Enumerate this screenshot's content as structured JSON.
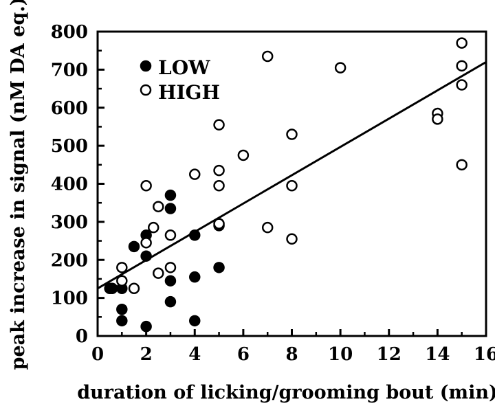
{
  "chart_data": {
    "type": "scatter",
    "title": "",
    "xlabel": "duration of licking/grooming bout (min)",
    "ylabel": "peak increase in signal (nM DA eq.)",
    "xlim": [
      0,
      16
    ],
    "ylim": [
      0,
      800
    ],
    "xticks": [
      0,
      2,
      4,
      6,
      8,
      10,
      12,
      14,
      16
    ],
    "yticks": [
      0,
      100,
      200,
      300,
      400,
      500,
      600,
      700,
      800
    ],
    "grid": false,
    "legend_position": "top-left",
    "series": [
      {
        "name": "LOW",
        "marker": "filled-circle",
        "color": "#000000",
        "points": [
          [
            0.5,
            125
          ],
          [
            0.6,
            125
          ],
          [
            1.0,
            125
          ],
          [
            1.0,
            70
          ],
          [
            1.0,
            40
          ],
          [
            1.5,
            235
          ],
          [
            2.0,
            265
          ],
          [
            2.0,
            210
          ],
          [
            2.0,
            25
          ],
          [
            3.0,
            370
          ],
          [
            3.0,
            335
          ],
          [
            3.0,
            145
          ],
          [
            3.0,
            90
          ],
          [
            4.0,
            265
          ],
          [
            4.0,
            155
          ],
          [
            4.0,
            40
          ],
          [
            5.0,
            290
          ],
          [
            5.0,
            180
          ]
        ]
      },
      {
        "name": "HIGH",
        "marker": "open-circle",
        "color": "#000000",
        "points": [
          [
            1.0,
            180
          ],
          [
            1.0,
            145
          ],
          [
            1.5,
            125
          ],
          [
            2.0,
            395
          ],
          [
            2.0,
            245
          ],
          [
            2.3,
            285
          ],
          [
            2.5,
            340
          ],
          [
            2.5,
            165
          ],
          [
            3.0,
            265
          ],
          [
            3.0,
            180
          ],
          [
            4.0,
            425
          ],
          [
            5.0,
            555
          ],
          [
            5.0,
            435
          ],
          [
            5.0,
            395
          ],
          [
            5.0,
            295
          ],
          [
            6.0,
            475
          ],
          [
            7.0,
            735
          ],
          [
            7.0,
            285
          ],
          [
            8.0,
            530
          ],
          [
            8.0,
            395
          ],
          [
            8.0,
            255
          ],
          [
            10.0,
            705
          ],
          [
            14.0,
            585
          ],
          [
            14.0,
            570
          ],
          [
            15.0,
            770
          ],
          [
            15.0,
            710
          ],
          [
            15.0,
            660
          ],
          [
            15.0,
            450
          ]
        ]
      }
    ],
    "regression_line": {
      "x": [
        0,
        16
      ],
      "y": [
        125,
        720
      ]
    }
  }
}
